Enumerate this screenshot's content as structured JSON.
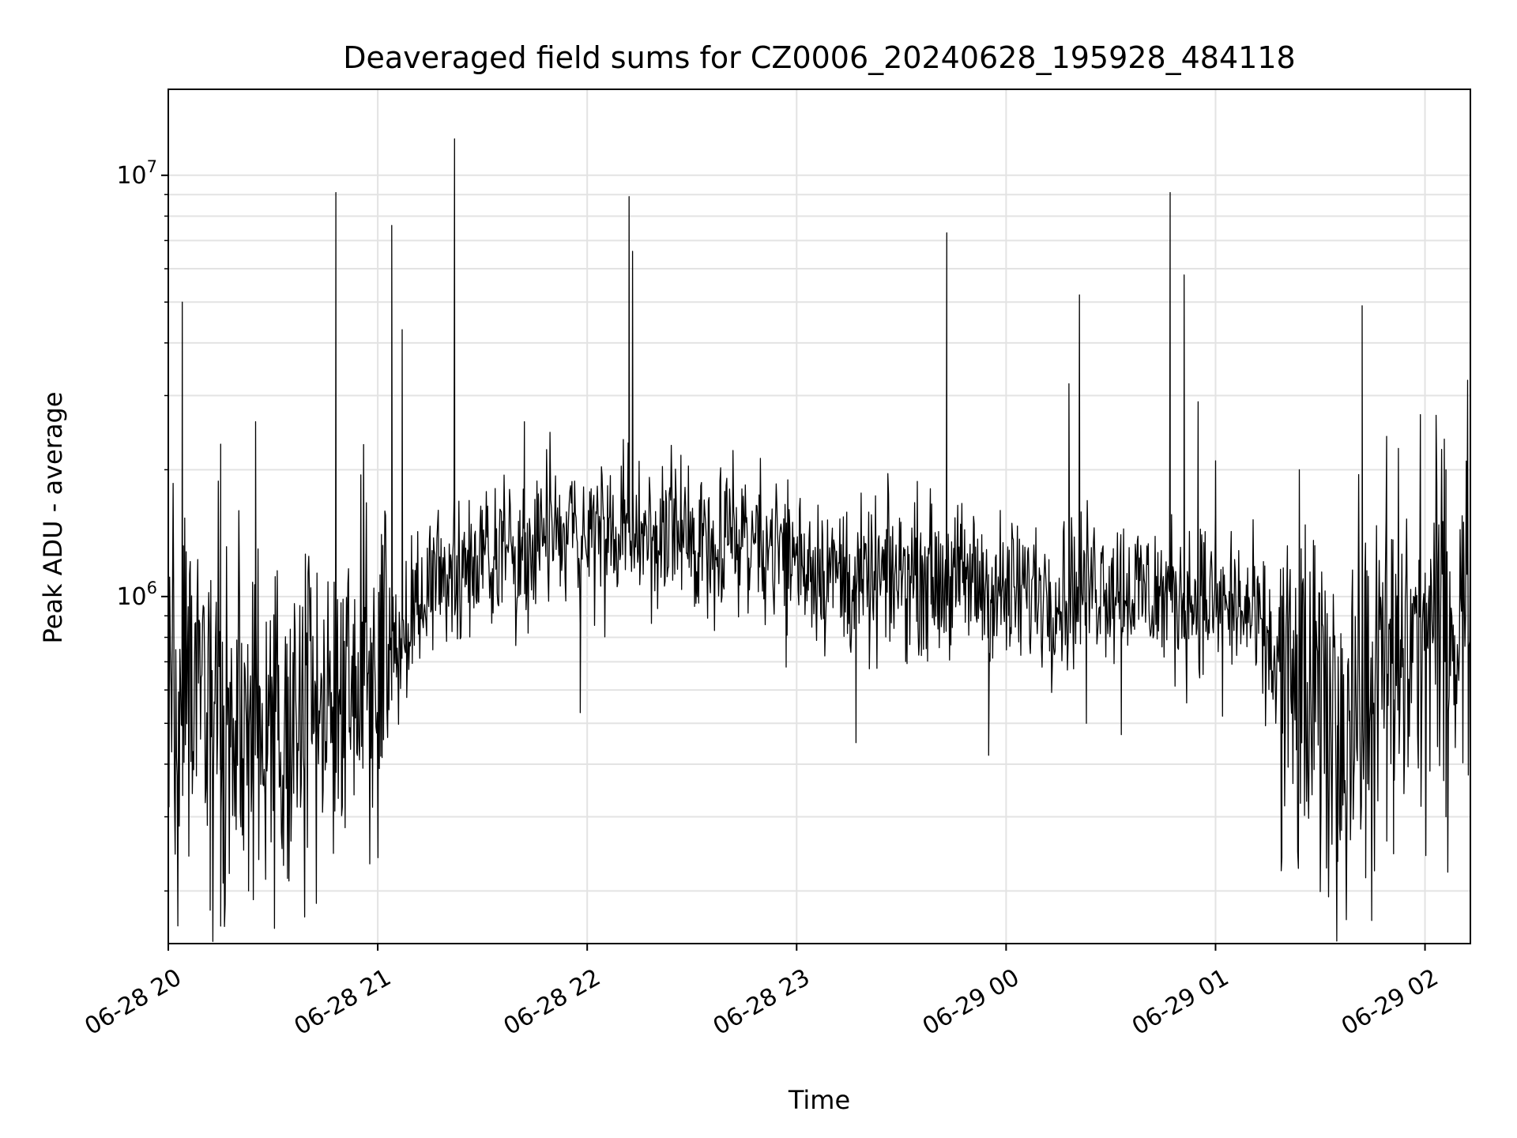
{
  "chart_data": {
    "type": "line",
    "title": "Deaveraged field sums for CZ0006_20240628_195928_484118",
    "xlabel": "Time",
    "ylabel": "Peak ADU - average",
    "y_scale": "log",
    "ylim": [
      150000,
      16000000
    ],
    "xlim": [
      "2024-06-28T20:00",
      "2024-06-29T02:13"
    ],
    "x_ticks": [
      {
        "value": "2024-06-28T20:00",
        "label": "06-28 20"
      },
      {
        "value": "2024-06-28T21:00",
        "label": "06-28 21"
      },
      {
        "value": "2024-06-28T22:00",
        "label": "06-28 22"
      },
      {
        "value": "2024-06-28T23:00",
        "label": "06-28 23"
      },
      {
        "value": "2024-06-29T00:00",
        "label": "06-29 00"
      },
      {
        "value": "2024-06-29T01:00",
        "label": "06-29 01"
      },
      {
        "value": "2024-06-29T02:00",
        "label": "06-29 02"
      }
    ],
    "y_ticks": [
      {
        "value": 1000000,
        "label_base": "10",
        "label_exp": "6"
      },
      {
        "value": 10000000,
        "label_base": "10",
        "label_exp": "7"
      }
    ],
    "grid": true,
    "line_color": "#000000",
    "series": [
      {
        "x": [
          "2024-06-28T20:00",
          "2024-06-28T20:05",
          "2024-06-28T20:10",
          "2024-06-28T20:15",
          "2024-06-28T20:20",
          "2024-06-28T20:25",
          "2024-06-28T20:30",
          "2024-06-28T20:35",
          "2024-06-28T20:40",
          "2024-06-28T20:45",
          "2024-06-28T20:50",
          "2024-06-28T20:55",
          "2024-06-28T21:00",
          "2024-06-28T21:05",
          "2024-06-28T21:10",
          "2024-06-28T21:15",
          "2024-06-28T21:20",
          "2024-06-28T21:25",
          "2024-06-28T21:30",
          "2024-06-28T21:35",
          "2024-06-28T21:40",
          "2024-06-28T21:45",
          "2024-06-28T21:50",
          "2024-06-28T21:55",
          "2024-06-28T22:00",
          "2024-06-28T22:05",
          "2024-06-28T22:10",
          "2024-06-28T22:15",
          "2024-06-28T22:20",
          "2024-06-28T22:25",
          "2024-06-28T22:30",
          "2024-06-28T22:35",
          "2024-06-28T22:40",
          "2024-06-28T22:45",
          "2024-06-28T22:50",
          "2024-06-28T22:55",
          "2024-06-28T23:00",
          "2024-06-28T23:05",
          "2024-06-28T23:10",
          "2024-06-28T23:15",
          "2024-06-28T23:20",
          "2024-06-28T23:25",
          "2024-06-28T23:30",
          "2024-06-28T23:35",
          "2024-06-28T23:40",
          "2024-06-28T23:45",
          "2024-06-28T23:50",
          "2024-06-28T23:55",
          "2024-06-29T00:00",
          "2024-06-29T00:05",
          "2024-06-29T00:10",
          "2024-06-29T00:15",
          "2024-06-29T00:20",
          "2024-06-29T00:25",
          "2024-06-29T00:30",
          "2024-06-29T00:35",
          "2024-06-29T00:40",
          "2024-06-29T00:45",
          "2024-06-29T00:50",
          "2024-06-29T00:55",
          "2024-06-29T01:00",
          "2024-06-29T01:05",
          "2024-06-29T01:10",
          "2024-06-29T01:15",
          "2024-06-29T01:20",
          "2024-06-29T01:25",
          "2024-06-29T01:30",
          "2024-06-29T01:35",
          "2024-06-29T01:40",
          "2024-06-29T01:45",
          "2024-06-29T01:50",
          "2024-06-29T01:55",
          "2024-06-29T02:00",
          "2024-06-29T02:05",
          "2024-06-29T02:10",
          "2024-06-29T02:13"
        ],
        "y": [
          600000,
          550000,
          520000,
          480000,
          500000,
          460000,
          450000,
          470000,
          500000,
          520000,
          600000,
          650000,
          700000,
          780000,
          900000,
          1050000,
          1150000,
          1200000,
          1250000,
          1300000,
          1300000,
          1350000,
          1380000,
          1400000,
          1420000,
          1400000,
          1380000,
          1420000,
          1400000,
          1380000,
          1350000,
          1400000,
          1420000,
          1400000,
          1380000,
          1300000,
          1250000,
          1200000,
          1150000,
          1100000,
          1050000,
          1100000,
          1120000,
          1150000,
          1100000,
          1080000,
          1100000,
          1050000,
          1000000,
          1020000,
          1050000,
          1000000,
          1050000,
          1100000,
          1080000,
          1050000,
          1020000,
          1000000,
          980000,
          1000000,
          950000,
          950000,
          900000,
          750000,
          600000,
          550000,
          520000,
          500000,
          550000,
          600000,
          650000,
          750000,
          800000,
          850000,
          900000,
          950000
        ]
      }
    ],
    "spikes": [
      {
        "x": "2024-06-28T20:04",
        "y": 5000000
      },
      {
        "x": "2024-06-28T20:15",
        "y": 2300000
      },
      {
        "x": "2024-06-28T20:25",
        "y": 2600000
      },
      {
        "x": "2024-06-28T20:48",
        "y": 9100000
      },
      {
        "x": "2024-06-28T21:04",
        "y": 7600000
      },
      {
        "x": "2024-06-28T21:07",
        "y": 4300000
      },
      {
        "x": "2024-06-28T21:22",
        "y": 12200000
      },
      {
        "x": "2024-06-28T21:42",
        "y": 2600000
      },
      {
        "x": "2024-06-28T22:12",
        "y": 8900000
      },
      {
        "x": "2024-06-28T22:13",
        "y": 6600000
      },
      {
        "x": "2024-06-28T23:43",
        "y": 7300000
      },
      {
        "x": "2024-06-29T00:18",
        "y": 3200000
      },
      {
        "x": "2024-06-29T00:21",
        "y": 5200000
      },
      {
        "x": "2024-06-29T00:47",
        "y": 9100000
      },
      {
        "x": "2024-06-29T00:51",
        "y": 5800000
      },
      {
        "x": "2024-06-29T00:55",
        "y": 2900000
      },
      {
        "x": "2024-06-29T01:00",
        "y": 2100000
      },
      {
        "x": "2024-06-29T01:24",
        "y": 2000000
      },
      {
        "x": "2024-06-29T01:42",
        "y": 4900000
      },
      {
        "x": "2024-06-29T01:49",
        "y": 2400000
      },
      {
        "x": "2024-06-29T02:06",
        "y": 2000000
      }
    ],
    "dips": [
      {
        "x": "2024-06-28T20:12",
        "y": 180000
      },
      {
        "x": "2024-06-28T20:15",
        "y": 165000
      },
      {
        "x": "2024-06-28T20:23",
        "y": 200000
      },
      {
        "x": "2024-06-28T20:33",
        "y": 230000
      },
      {
        "x": "2024-06-28T21:58",
        "y": 530000
      },
      {
        "x": "2024-06-28T22:57",
        "y": 680000
      },
      {
        "x": "2024-06-28T23:17",
        "y": 450000
      },
      {
        "x": "2024-06-28T23:55",
        "y": 420000
      },
      {
        "x": "2024-06-29T00:23",
        "y": 500000
      },
      {
        "x": "2024-06-29T00:33",
        "y": 470000
      },
      {
        "x": "2024-06-29T01:02",
        "y": 520000
      },
      {
        "x": "2024-06-29T01:19",
        "y": 240000
      },
      {
        "x": "2024-06-29T01:35",
        "y": 235000
      },
      {
        "x": "2024-06-29T01:43",
        "y": 215000
      },
      {
        "x": "2024-06-29T01:51",
        "y": 245000
      },
      {
        "x": "2024-06-29T02:06",
        "y": 300000
      }
    ]
  }
}
